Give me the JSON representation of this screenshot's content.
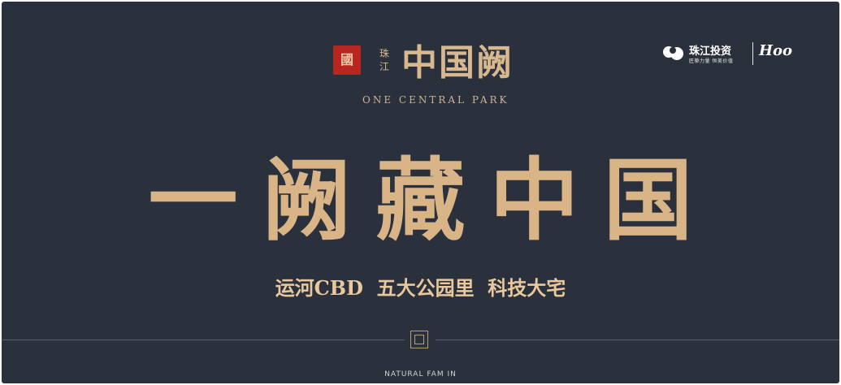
{
  "project_logo": {
    "seal_char": "國",
    "place": [
      "珠",
      "江"
    ],
    "name": "中国阙",
    "english": "ONE CENTRAL PARK"
  },
  "brand": {
    "name": "珠江投资",
    "sub": "匠築力量 恒美价值",
    "partner": "Hoo"
  },
  "headline": "一阙藏中国",
  "tagline": "运河CBD  五大公园里  科技大宅",
  "footer_text": "NATURAL FAM IN",
  "colors": {
    "background": "#2a303c",
    "gold": "#d9b486",
    "seal_red": "#b8261f"
  }
}
